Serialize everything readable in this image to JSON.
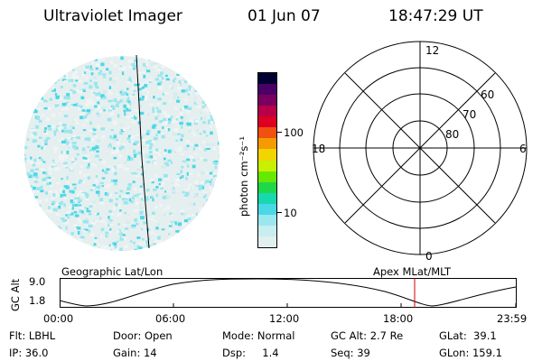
{
  "header": {
    "instrument": "Ultraviolet Imager",
    "date": "01 Jun 07",
    "time": "18:47:29 UT"
  },
  "colorbar": {
    "unit_label": "photon cm⁻²s⁻¹",
    "ticks": [
      "100",
      "10"
    ],
    "colors": [
      "#000033",
      "#4b0066",
      "#7a0060",
      "#b8004a",
      "#dd0022",
      "#f05010",
      "#f59a00",
      "#f2d500",
      "#c8f000",
      "#66e800",
      "#1ed84a",
      "#18d8b0",
      "#4ad8e6",
      "#9ae8ee",
      "#c8eef0",
      "#e2efef"
    ]
  },
  "polar_plot": {
    "mlt_labels": {
      "top": "12",
      "bottom": "0",
      "left": "18",
      "right": "6"
    },
    "lat_labels": [
      "60",
      "70",
      "80"
    ]
  },
  "orbit": {
    "left_title": "Geographic Lat/Lon",
    "right_title": "Apex MLat/MLT",
    "axis_label": "GC Alt",
    "y_ticks": [
      "9.0",
      "1.8"
    ],
    "x_ticks": [
      "00:00",
      "06:00",
      "12:00",
      "18:00",
      "23:59"
    ],
    "marker_color": "#cc0000"
  },
  "info": {
    "flt": "Flt: LBHL",
    "ip": "IP: 36.0",
    "door": "Door: Open",
    "gain": "Gain: 14",
    "mode": "Mode: Normal",
    "dsp": "Dsp:     1.4",
    "gc_alt": "GC Alt: 2.7 Re",
    "seq": "Seq: 39",
    "glat": "GLat:  39.1",
    "glon": "GLon: 159.1"
  }
}
